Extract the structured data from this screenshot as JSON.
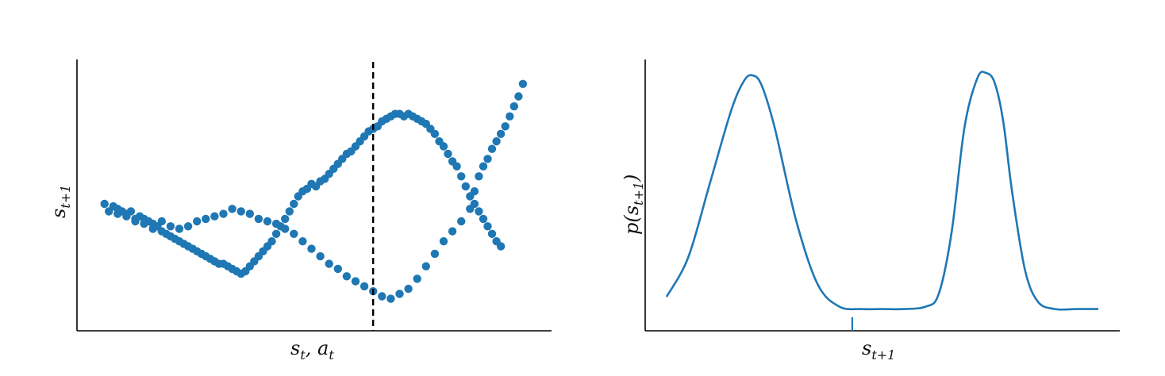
{
  "chart_data": [
    {
      "type": "scatter",
      "xlabel": "s_t, a_t",
      "ylabel": "s_{t+1}",
      "xticks": [],
      "yticks": [],
      "xlim": [
        0,
        1
      ],
      "ylim": [
        0,
        1
      ],
      "marker_color": "#1f77b4",
      "vline": {
        "x": 0.64,
        "style": "dashed",
        "color": "#000000"
      },
      "series": [
        {
          "values_description_free": true,
          "points": [
            [
              0.03,
              0.47
            ],
            [
              0.05,
              0.46
            ],
            [
              0.06,
              0.45
            ],
            [
              0.07,
              0.44
            ],
            [
              0.08,
              0.43
            ],
            [
              0.09,
              0.44
            ],
            [
              0.1,
              0.41
            ],
            [
              0.11,
              0.42
            ],
            [
              0.12,
              0.39
            ],
            [
              0.13,
              0.4
            ],
            [
              0.14,
              0.37
            ],
            [
              0.15,
              0.38
            ],
            [
              0.16,
              0.36
            ],
            [
              0.17,
              0.35
            ],
            [
              0.18,
              0.34
            ],
            [
              0.19,
              0.33
            ],
            [
              0.2,
              0.32
            ],
            [
              0.21,
              0.31
            ],
            [
              0.22,
              0.3
            ],
            [
              0.23,
              0.29
            ],
            [
              0.24,
              0.28
            ],
            [
              0.25,
              0.27
            ],
            [
              0.26,
              0.26
            ],
            [
              0.27,
              0.25
            ],
            [
              0.28,
              0.24
            ],
            [
              0.29,
              0.23
            ],
            [
              0.3,
              0.23
            ],
            [
              0.31,
              0.22
            ],
            [
              0.32,
              0.21
            ],
            [
              0.33,
              0.2
            ],
            [
              0.34,
              0.19
            ],
            [
              0.35,
              0.2
            ],
            [
              0.36,
              0.22
            ],
            [
              0.37,
              0.24
            ],
            [
              0.38,
              0.26
            ],
            [
              0.39,
              0.28
            ],
            [
              0.4,
              0.3
            ],
            [
              0.41,
              0.32
            ],
            [
              0.42,
              0.35
            ],
            [
              0.43,
              0.38
            ],
            [
              0.44,
              0.41
            ],
            [
              0.45,
              0.44
            ],
            [
              0.46,
              0.47
            ],
            [
              0.47,
              0.5
            ],
            [
              0.48,
              0.52
            ],
            [
              0.49,
              0.53
            ],
            [
              0.5,
              0.55
            ],
            [
              0.51,
              0.54
            ],
            [
              0.52,
              0.56
            ],
            [
              0.53,
              0.57
            ],
            [
              0.54,
              0.59
            ],
            [
              0.55,
              0.61
            ],
            [
              0.56,
              0.63
            ],
            [
              0.57,
              0.65
            ],
            [
              0.58,
              0.67
            ],
            [
              0.59,
              0.68
            ],
            [
              0.6,
              0.7
            ],
            [
              0.61,
              0.72
            ],
            [
              0.62,
              0.74
            ],
            [
              0.63,
              0.76
            ],
            [
              0.64,
              0.77
            ],
            [
              0.65,
              0.78
            ],
            [
              0.66,
              0.8
            ],
            [
              0.67,
              0.81
            ],
            [
              0.68,
              0.82
            ],
            [
              0.69,
              0.83
            ],
            [
              0.7,
              0.83
            ],
            [
              0.71,
              0.82
            ],
            [
              0.72,
              0.83
            ],
            [
              0.73,
              0.82
            ],
            [
              0.74,
              0.81
            ],
            [
              0.75,
              0.8
            ],
            [
              0.76,
              0.79
            ],
            [
              0.77,
              0.77
            ],
            [
              0.78,
              0.75
            ],
            [
              0.79,
              0.72
            ],
            [
              0.8,
              0.7
            ],
            [
              0.81,
              0.67
            ],
            [
              0.82,
              0.64
            ],
            [
              0.83,
              0.62
            ],
            [
              0.84,
              0.58
            ],
            [
              0.85,
              0.54
            ],
            [
              0.86,
              0.5
            ],
            [
              0.87,
              0.47
            ],
            [
              0.88,
              0.44
            ],
            [
              0.89,
              0.41
            ],
            [
              0.9,
              0.38
            ],
            [
              0.91,
              0.35
            ],
            [
              0.92,
              0.32
            ],
            [
              0.93,
              0.3
            ],
            [
              0.04,
              0.44
            ],
            [
              0.06,
              0.43
            ],
            [
              0.08,
              0.42
            ],
            [
              0.1,
              0.4
            ],
            [
              0.12,
              0.41
            ],
            [
              0.14,
              0.39
            ],
            [
              0.16,
              0.4
            ],
            [
              0.18,
              0.38
            ],
            [
              0.2,
              0.37
            ],
            [
              0.22,
              0.38
            ],
            [
              0.24,
              0.4
            ],
            [
              0.26,
              0.41
            ],
            [
              0.28,
              0.42
            ],
            [
              0.3,
              0.43
            ],
            [
              0.32,
              0.45
            ],
            [
              0.34,
              0.44
            ],
            [
              0.36,
              0.43
            ],
            [
              0.38,
              0.41
            ],
            [
              0.4,
              0.4
            ],
            [
              0.42,
              0.39
            ],
            [
              0.44,
              0.37
            ],
            [
              0.46,
              0.35
            ],
            [
              0.48,
              0.32
            ],
            [
              0.5,
              0.29
            ],
            [
              0.52,
              0.26
            ],
            [
              0.54,
              0.23
            ],
            [
              0.56,
              0.21
            ],
            [
              0.58,
              0.18
            ],
            [
              0.6,
              0.16
            ],
            [
              0.62,
              0.14
            ],
            [
              0.64,
              0.12
            ],
            [
              0.66,
              0.1
            ],
            [
              0.68,
              0.09
            ],
            [
              0.7,
              0.11
            ],
            [
              0.72,
              0.13
            ],
            [
              0.74,
              0.17
            ],
            [
              0.76,
              0.22
            ],
            [
              0.78,
              0.27
            ],
            [
              0.8,
              0.32
            ],
            [
              0.82,
              0.36
            ],
            [
              0.84,
              0.4
            ],
            [
              0.86,
              0.45
            ],
            [
              0.87,
              0.52
            ],
            [
              0.88,
              0.58
            ],
            [
              0.89,
              0.62
            ],
            [
              0.9,
              0.65
            ],
            [
              0.91,
              0.69
            ],
            [
              0.92,
              0.72
            ],
            [
              0.93,
              0.75
            ],
            [
              0.94,
              0.78
            ],
            [
              0.95,
              0.82
            ],
            [
              0.96,
              0.86
            ],
            [
              0.97,
              0.9
            ],
            [
              0.98,
              0.95
            ]
          ]
        }
      ]
    },
    {
      "type": "line",
      "xlabel": "s_{t+1}",
      "ylabel": "p(s_{t+1})",
      "xticks": [],
      "yticks": [],
      "line_color": "#1f77b4",
      "marker_tick_x": 0.43,
      "xlim": [
        0,
        1
      ],
      "ylim": [
        0,
        1
      ],
      "series": [
        {
          "x": [
            0.0,
            0.05,
            0.1,
            0.15,
            0.18,
            0.2,
            0.22,
            0.25,
            0.3,
            0.35,
            0.4,
            0.45,
            0.5,
            0.55,
            0.6,
            0.63,
            0.66,
            0.69,
            0.72,
            0.74,
            0.76,
            0.78,
            0.8,
            0.83,
            0.86,
            0.9,
            0.95,
            1.0
          ],
          "values": [
            0.09,
            0.25,
            0.55,
            0.85,
            0.97,
            0.99,
            0.95,
            0.78,
            0.4,
            0.14,
            0.05,
            0.04,
            0.04,
            0.04,
            0.05,
            0.1,
            0.35,
            0.78,
            0.98,
            1.0,
            0.96,
            0.8,
            0.52,
            0.2,
            0.07,
            0.04,
            0.04,
            0.04
          ]
        }
      ]
    }
  ],
  "labels": {
    "left_x_main": "s",
    "left_x_sub1": "t",
    "left_x_sep": ", a",
    "left_x_sub2": "t",
    "left_y_main": "s",
    "left_y_sub": "t+1",
    "right_x_main": "s",
    "right_x_sub": "t+1",
    "right_y_pre": "p(s",
    "right_y_sub": "t+1",
    "right_y_post": ")"
  }
}
